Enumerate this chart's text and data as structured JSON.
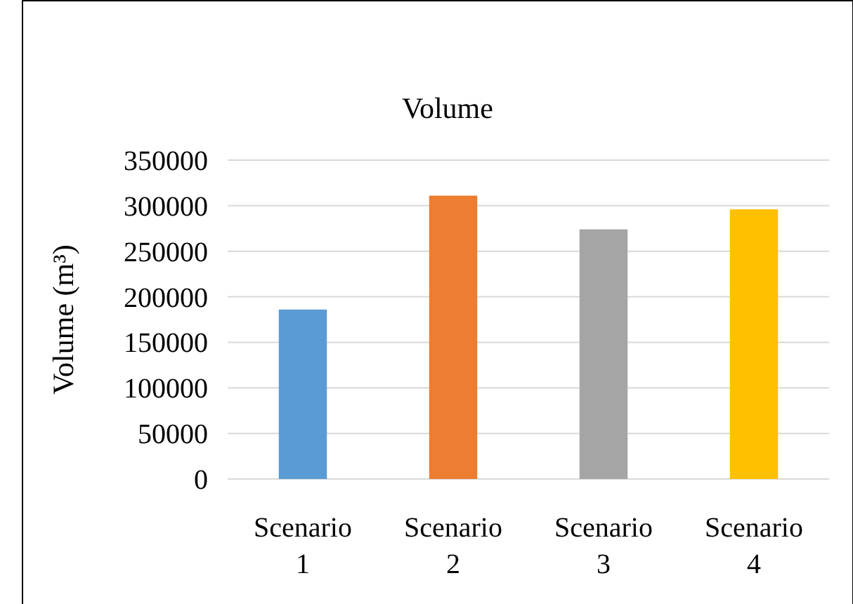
{
  "chart_data": {
    "type": "bar",
    "title": "Volume",
    "ylabel": "Volume (m³)",
    "categories": [
      "Scenario 1",
      "Scenario 2",
      "Scenario 3",
      "Scenario 4"
    ],
    "values": [
      186000,
      311000,
      274000,
      296000
    ],
    "colors": [
      "#5b9bd5",
      "#ed7d31",
      "#a5a5a5",
      "#ffc000"
    ],
    "ylim": [
      0,
      350000
    ],
    "yticks": [
      0,
      50000,
      100000,
      150000,
      200000,
      250000,
      300000,
      350000
    ],
    "grid": "y"
  }
}
